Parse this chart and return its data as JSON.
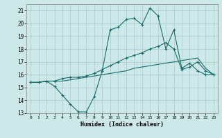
{
  "title": "",
  "xlabel": "Humidex (Indice chaleur)",
  "xlim": [
    -0.5,
    23.5
  ],
  "ylim": [
    13,
    21.5
  ],
  "yticks": [
    13,
    14,
    15,
    16,
    17,
    18,
    19,
    20,
    21
  ],
  "xticks": [
    0,
    1,
    2,
    3,
    4,
    5,
    6,
    7,
    8,
    9,
    10,
    11,
    12,
    13,
    14,
    15,
    16,
    17,
    18,
    19,
    20,
    21,
    22,
    23
  ],
  "bg_color": "#cce8e8",
  "line_color": "#1a6b6b",
  "grid_color": "#aacccc",
  "line1_x": [
    0,
    1,
    2,
    3,
    4,
    5,
    6,
    7,
    8,
    9,
    10,
    11,
    12,
    13,
    14,
    15,
    16,
    17,
    18,
    19,
    20,
    21,
    22,
    23
  ],
  "line1_y": [
    15.4,
    15.4,
    15.5,
    15.1,
    14.4,
    13.7,
    13.1,
    13.1,
    14.3,
    16.3,
    19.5,
    19.7,
    20.3,
    20.4,
    19.9,
    21.2,
    20.6,
    18.0,
    19.5,
    16.5,
    16.9,
    16.3,
    16.0,
    16.0
  ],
  "line2_x": [
    0,
    1,
    2,
    3,
    4,
    5,
    6,
    7,
    8,
    9,
    10,
    11,
    12,
    13,
    14,
    15,
    16,
    17,
    18,
    19,
    20,
    21,
    22,
    23
  ],
  "line2_y": [
    15.4,
    15.4,
    15.5,
    15.5,
    15.5,
    15.6,
    15.7,
    15.8,
    15.9,
    16.0,
    16.1,
    16.2,
    16.3,
    16.5,
    16.6,
    16.7,
    16.8,
    16.9,
    17.0,
    17.1,
    17.2,
    17.3,
    16.5,
    16.0
  ],
  "line3_x": [
    0,
    1,
    2,
    3,
    4,
    5,
    6,
    7,
    8,
    9,
    10,
    11,
    12,
    13,
    14,
    15,
    16,
    17,
    18,
    19,
    20,
    21,
    22,
    23
  ],
  "line3_y": [
    15.4,
    15.4,
    15.5,
    15.5,
    15.7,
    15.8,
    15.8,
    15.9,
    16.1,
    16.4,
    16.7,
    17.0,
    17.3,
    17.5,
    17.7,
    18.0,
    18.2,
    18.5,
    18.0,
    16.4,
    16.6,
    17.0,
    16.3,
    16.0
  ]
}
